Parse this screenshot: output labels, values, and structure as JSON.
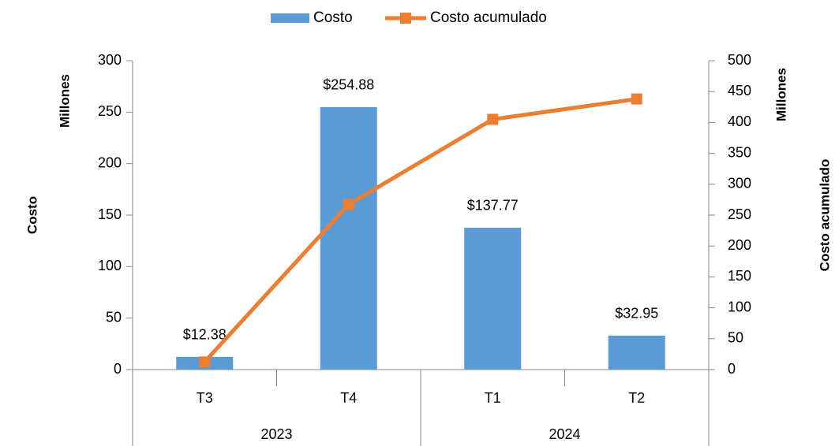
{
  "chart_data": {
    "type": "combo",
    "categories": [
      "T3",
      "T4",
      "T1",
      "T2"
    ],
    "groups": [
      {
        "name": "2023",
        "span": 2
      },
      {
        "name": "2024",
        "span": 2
      }
    ],
    "series": [
      {
        "name": "Costo",
        "type": "bar",
        "color": "#5b9bd5",
        "values": [
          12.38,
          254.88,
          137.77,
          32.95
        ],
        "value_labels": [
          "$12.38",
          "$254.88",
          "$137.77",
          "$32.95"
        ]
      },
      {
        "name": "Costo acumulado",
        "type": "line",
        "axis": "y2",
        "color": "#ed7d31",
        "values": [
          12.38,
          267.26,
          405.03,
          437.98
        ]
      }
    ],
    "ylabel": "Costo",
    "yunit": "Millones",
    "y2label": "Costo acumulado",
    "y2unit": "Millones",
    "ylim": [
      0,
      300
    ],
    "yticks": [
      0,
      50,
      100,
      150,
      200,
      250,
      300
    ],
    "y2lim": [
      0,
      500
    ],
    "y2ticks": [
      0,
      50,
      100,
      150,
      200,
      250,
      300,
      350,
      400,
      450,
      500
    ],
    "legend": "top",
    "grid": false
  }
}
